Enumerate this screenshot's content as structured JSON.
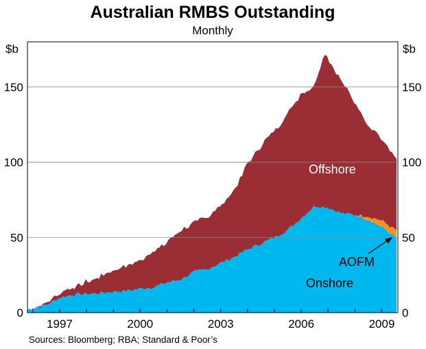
{
  "chart_data": {
    "type": "area",
    "stacked": true,
    "title": "Australian RMBS Outstanding",
    "subtitle": "Monthly",
    "ylabel_left": "$b",
    "ylabel_right": "$b",
    "source": "Sources: Bloomberg; RBA; Standard & Poor’s",
    "ylim": [
      0,
      180
    ],
    "xlim": [
      1995.8,
      2009.6
    ],
    "y_ticks": [
      0,
      50,
      100,
      150
    ],
    "x_ticks": [
      1997,
      2000,
      2003,
      2006,
      2009
    ],
    "x_tick_labels": [
      "1997",
      "2000",
      "2003",
      "2006",
      "2009"
    ],
    "grid": true,
    "annotations": [
      "Offshore",
      "AOFM",
      "Onshore"
    ],
    "colors": {
      "Onshore": "#00b8ee",
      "AOFM": "#f5921e",
      "Offshore": "#9b2d35"
    },
    "series": [
      {
        "name": "Onshore",
        "x": [
          1995.8,
          1996.0,
          1996.5,
          1997.0,
          1997.5,
          1998.0,
          1998.5,
          1999.0,
          1999.5,
          2000.0,
          2000.5,
          2001.0,
          2001.5,
          2002.0,
          2002.5,
          2003.0,
          2003.5,
          2004.0,
          2004.5,
          2005.0,
          2005.5,
          2006.0,
          2006.5,
          2007.0,
          2007.5,
          2008.0,
          2008.5,
          2009.0,
          2009.6
        ],
        "values": [
          2,
          3,
          5,
          10,
          12,
          12.5,
          13,
          14,
          14.5,
          16,
          17,
          20,
          22,
          27,
          29,
          33,
          37,
          42,
          46,
          50,
          55,
          63,
          71,
          70,
          66,
          65,
          62,
          57,
          49
        ]
      },
      {
        "name": "AOFM",
        "x": [
          1995.8,
          2008.0,
          2008.5,
          2009.0,
          2009.6
        ],
        "values": [
          0,
          0,
          2,
          4,
          5
        ]
      },
      {
        "name": "Offshore",
        "x": [
          1995.8,
          1996.0,
          1996.5,
          1997.0,
          1997.5,
          1998.0,
          1998.5,
          1999.0,
          1999.5,
          2000.0,
          2000.5,
          2001.0,
          2001.5,
          2002.0,
          2002.5,
          2003.0,
          2003.5,
          2004.0,
          2004.5,
          2005.0,
          2005.5,
          2006.0,
          2006.5,
          2006.9,
          2007.0,
          2007.5,
          2008.0,
          2008.5,
          2009.0,
          2009.6
        ],
        "values": [
          0,
          0,
          1,
          3,
          5,
          8,
          11,
          14,
          17,
          19,
          24,
          27,
          33,
          32,
          35,
          38,
          44,
          57,
          65,
          71,
          77,
          83,
          80,
          104,
          99,
          88,
          75,
          61,
          54,
          46
        ]
      }
    ]
  }
}
